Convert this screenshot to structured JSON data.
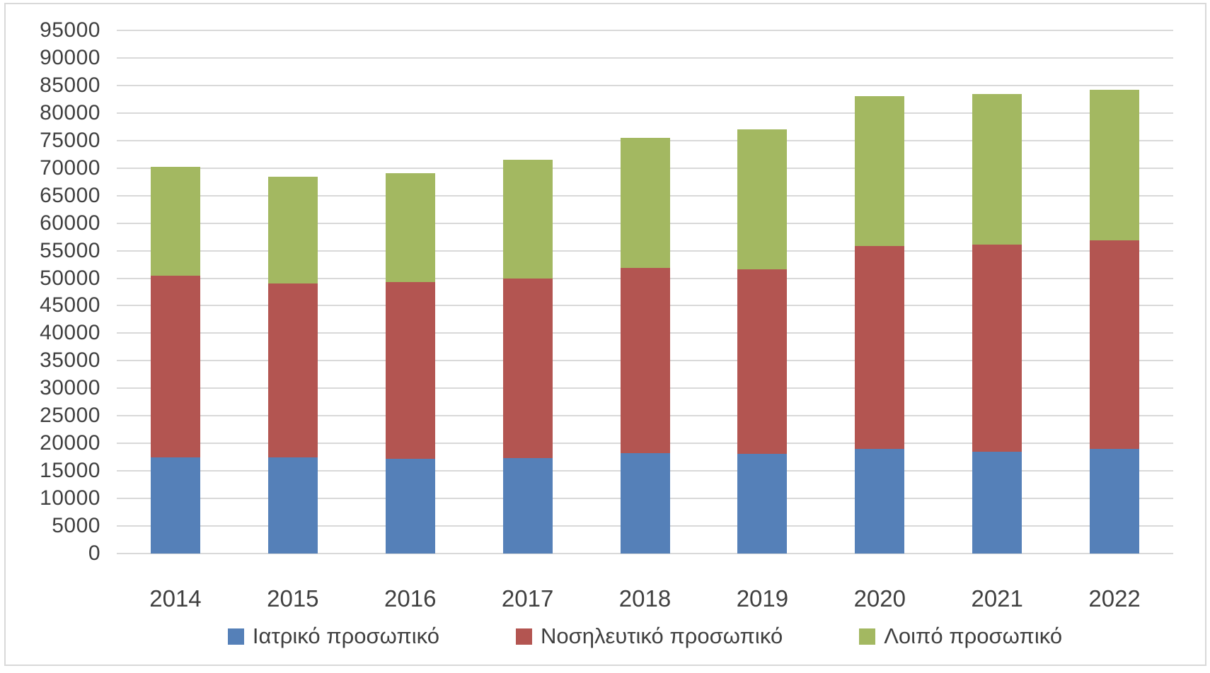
{
  "chart": {
    "background_color": "#FFFFFF",
    "border_color": "#D9D9D9",
    "gridline_color": "#D9D9D9",
    "tick_label_color": "#404040",
    "legend_position": "bottom"
  },
  "chart_data": {
    "type": "bar",
    "stacked": true,
    "title": "",
    "xlabel": "",
    "ylabel": "",
    "categories": [
      "2014",
      "2015",
      "2016",
      "2017",
      "2018",
      "2019",
      "2020",
      "2021",
      "2022"
    ],
    "series": [
      {
        "name": "Ιατρικό προσωπικό",
        "color": "#5580B8",
        "values": [
          17500,
          17400,
          17250,
          17300,
          18200,
          18100,
          19000,
          18550,
          19000
        ]
      },
      {
        "name": "Νοσηλευτικό προσωπικό",
        "color": "#B35551",
        "values": [
          32900,
          31700,
          32050,
          32700,
          33700,
          33500,
          36900,
          37500,
          37900
        ]
      },
      {
        "name": "Λοιπό προσωπικό",
        "color": "#A3B861",
        "values": [
          19800,
          19300,
          19800,
          21500,
          23600,
          25400,
          27100,
          27450,
          27300
        ]
      }
    ],
    "stack_totals": [
      70200,
      68400,
      69100,
      71500,
      75500,
      77000,
      83000,
      83500,
      84200
    ],
    "ylim": [
      0,
      95000
    ],
    "ytick_step": 5000,
    "yticks": [
      0,
      5000,
      10000,
      15000,
      20000,
      25000,
      30000,
      35000,
      40000,
      45000,
      50000,
      55000,
      60000,
      65000,
      70000,
      75000,
      80000,
      85000,
      90000,
      95000
    ],
    "grid": true,
    "legend_position": "bottom"
  }
}
